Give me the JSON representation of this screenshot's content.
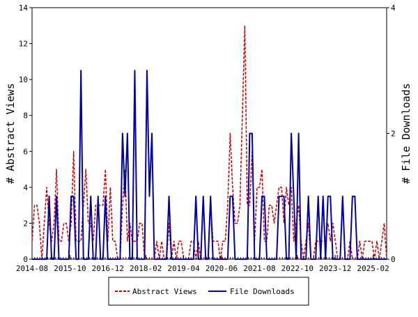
{
  "chart_data": {
    "type": "line",
    "ylabel_left": "# Abstract Views",
    "ylabel_right": "# File Downloads",
    "y_left_range": [
      0,
      14
    ],
    "y_right_range": [
      0,
      4
    ],
    "y_left_ticks": [
      "0",
      "2",
      "4",
      "6",
      "8",
      "10",
      "12",
      "14"
    ],
    "y_right_ticks": [
      "0",
      "2",
      "4"
    ],
    "x_ticks": [
      "2014-08",
      "2015-10",
      "2016-12",
      "2018-02",
      "2019-04",
      "2020-06",
      "2021-08",
      "2022-10",
      "2023-12",
      "2025-02"
    ],
    "legend_position": "bottom",
    "series": [
      {
        "name": "Abstract Views",
        "axis": "left",
        "color": "#cc0000",
        "style": "dashed",
        "values": [
          1,
          3,
          3,
          2,
          0,
          2,
          4,
          2,
          1,
          2,
          5,
          1,
          1,
          2,
          2,
          1,
          2,
          6,
          1,
          1,
          1,
          3,
          5,
          2,
          2,
          1,
          3,
          3,
          3,
          3,
          5,
          1,
          4,
          1,
          1,
          0,
          0,
          3,
          5,
          1,
          2,
          1,
          1,
          1,
          2,
          2,
          0,
          0,
          0,
          0,
          0,
          1,
          0,
          1,
          0,
          0,
          2,
          0,
          1,
          0,
          1,
          1,
          0,
          0,
          0,
          1,
          1,
          0,
          1,
          0,
          0,
          0,
          0,
          3,
          1,
          1,
          1,
          0,
          1,
          1,
          3,
          7,
          4,
          2,
          2,
          3,
          8,
          13,
          3,
          3,
          6,
          1,
          4,
          4,
          5,
          1,
          1,
          3,
          3,
          2,
          3,
          4,
          4,
          2,
          4,
          3,
          4,
          1,
          2,
          3,
          1,
          0,
          1,
          2,
          0,
          0,
          1,
          1,
          1,
          1,
          1,
          2,
          1,
          2,
          1,
          0,
          0,
          0,
          0,
          0,
          1,
          0,
          0,
          0,
          1,
          0,
          1,
          1,
          1,
          1,
          0,
          1,
          0,
          1,
          2,
          0
        ]
      },
      {
        "name": "File Downloads",
        "axis": "right",
        "color": "#0000aa",
        "style": "solid",
        "values": [
          0,
          0,
          0,
          0,
          0,
          0,
          0,
          1,
          0,
          0,
          1,
          0,
          0,
          0,
          0,
          0,
          1,
          1,
          0,
          0,
          3,
          0,
          0,
          0,
          1,
          0,
          0,
          1,
          0,
          0,
          1,
          0,
          0,
          0,
          0,
          0,
          0,
          2,
          1,
          2,
          0,
          0,
          3,
          0,
          0,
          0,
          0,
          3,
          1,
          2,
          0,
          0,
          0,
          0,
          0,
          0,
          1,
          0,
          0,
          0,
          0,
          0,
          0,
          0,
          0,
          0,
          0,
          1,
          0,
          0,
          1,
          0,
          0,
          1,
          0,
          0,
          0,
          0,
          0,
          0,
          0,
          1,
          1,
          0,
          0,
          0,
          0,
          0,
          0,
          2,
          2,
          0,
          0,
          0,
          1,
          1,
          0,
          0,
          0,
          0,
          0,
          1,
          1,
          1,
          0,
          0,
          2,
          1,
          0,
          2,
          0,
          0,
          0,
          1,
          0,
          0,
          0,
          1,
          0,
          1,
          0,
          1,
          1,
          0,
          0,
          0,
          0,
          1,
          0,
          0,
          0,
          1,
          1,
          0,
          0,
          0,
          0,
          0,
          0,
          0,
          0,
          0,
          0,
          0,
          0,
          0
        ]
      }
    ]
  }
}
